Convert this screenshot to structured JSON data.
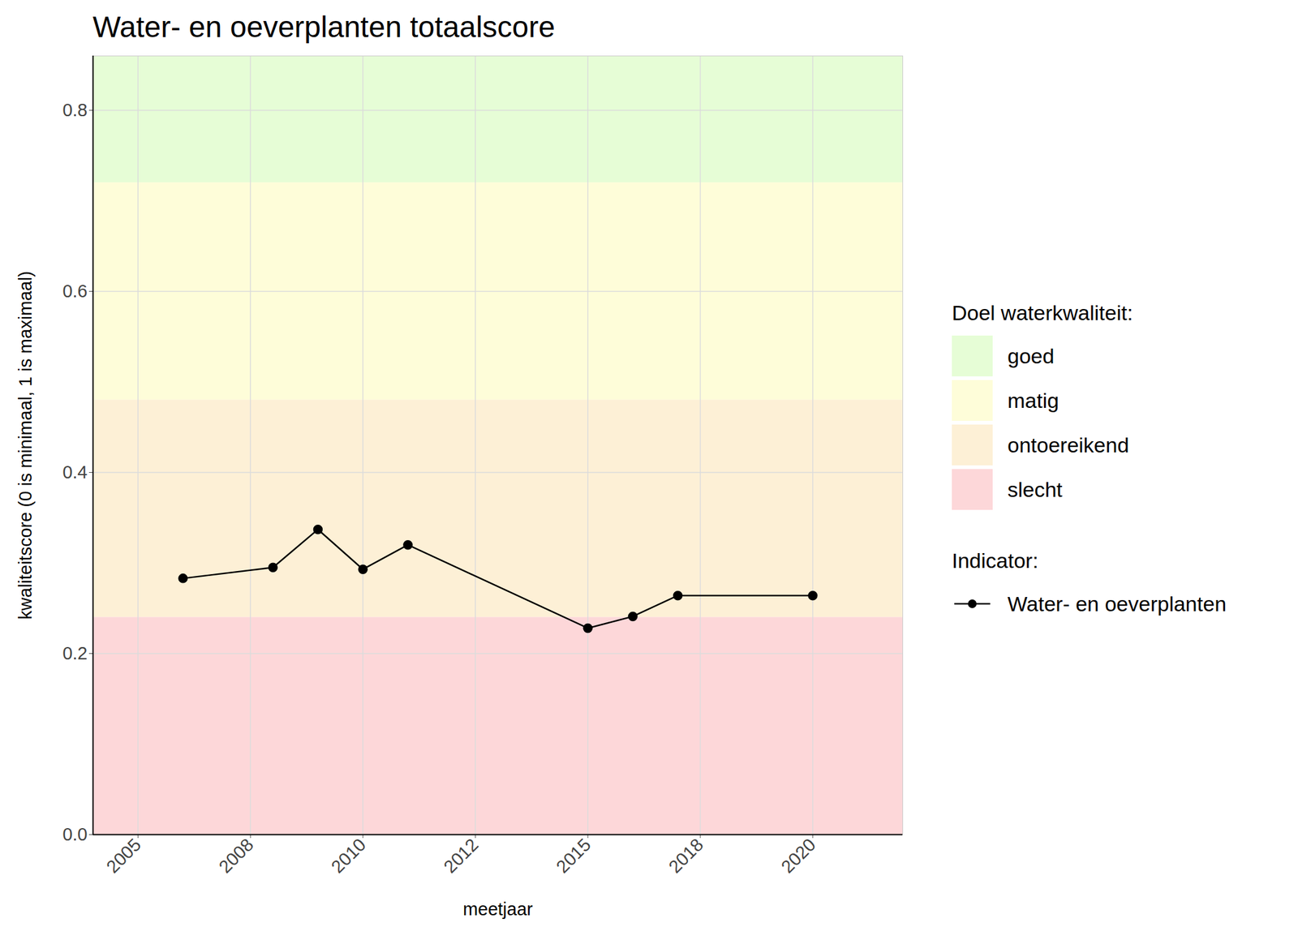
{
  "chart_data": {
    "type": "line",
    "title": "Water- en oeverplanten totaalscore",
    "x_label": "meetjaar",
    "y_label": "kwaliteitscore (0 is minimaal, 1 is maximaal)",
    "x": [
      2006,
      2008,
      2009,
      2010,
      2011,
      2015,
      2016,
      2017,
      2020
    ],
    "series": [
      {
        "name": "Water- en oeverplanten",
        "color": "#000000",
        "marker": "circle",
        "line_style": "solid",
        "values": [
          0.283,
          0.295,
          0.337,
          0.293,
          0.32,
          0.228,
          0.241,
          0.264,
          0.264
        ]
      }
    ],
    "xlim": [
      2004,
      2022
    ],
    "xticks": [
      {
        "value": 2005,
        "label": "2005"
      },
      {
        "value": 2007.5,
        "label": "2008"
      },
      {
        "value": 2010,
        "label": "2010"
      },
      {
        "value": 2012.5,
        "label": "2012"
      },
      {
        "value": 2015,
        "label": "2015"
      },
      {
        "value": 2017.5,
        "label": "2018"
      },
      {
        "value": 2020,
        "label": "2020"
      }
    ],
    "ylim": [
      0,
      0.86
    ],
    "yticks": [
      {
        "value": 0,
        "label": "0.0"
      },
      0.2,
      0.4,
      0.6,
      0.8
    ],
    "grid": true,
    "legend": "right",
    "band_legend_title": "Doel waterkwaliteit:",
    "series_legend_title": "Indicator:",
    "bands": [
      {
        "name": "goed",
        "from": 0.72,
        "to": 0.86,
        "color": "#e6fdd6"
      },
      {
        "name": "matig",
        "from": 0.48,
        "to": 0.72,
        "color": "#fefdd9"
      },
      {
        "name": "ontoereikend",
        "from": 0.24,
        "to": 0.48,
        "color": "#fdf0d6"
      },
      {
        "name": "slecht",
        "from": 0,
        "to": 0.24,
        "color": "#fdd7d9"
      }
    ]
  }
}
